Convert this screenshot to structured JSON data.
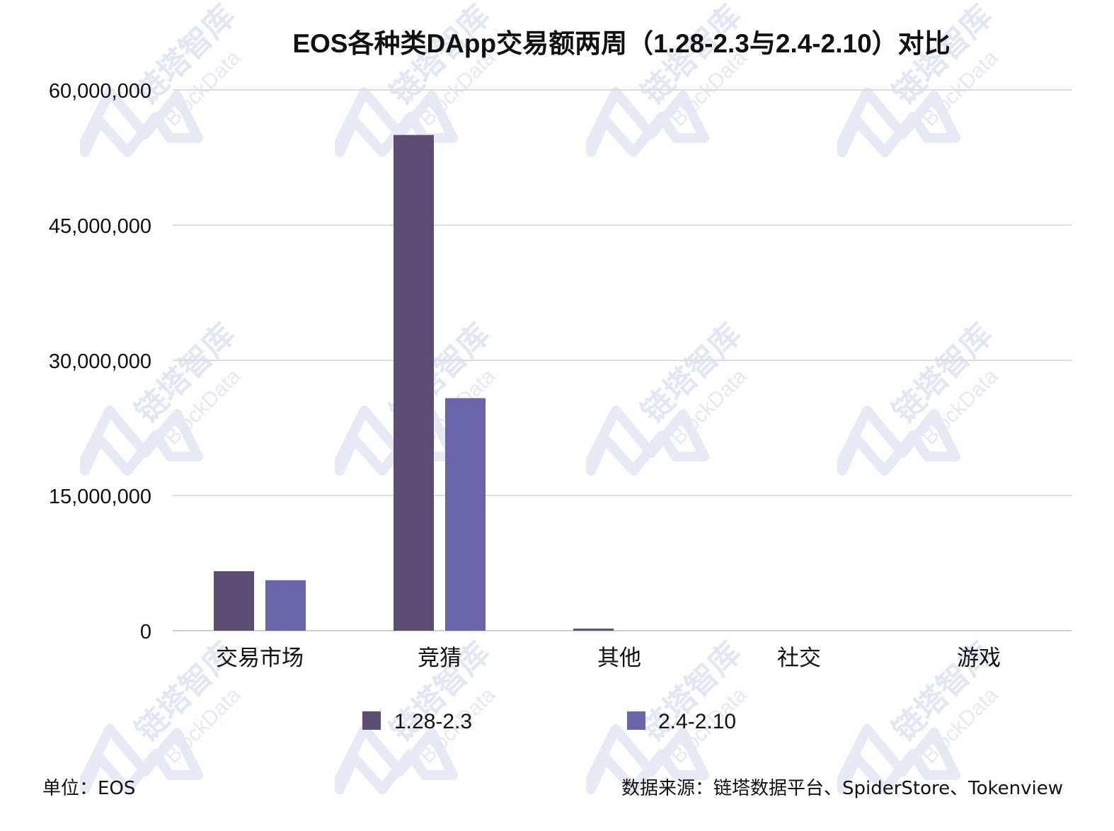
{
  "chart_data": {
    "type": "bar",
    "title": "EOS各种类DApp交易额两周（1.28-2.3与2.4-2.10）对比",
    "categories": [
      "交易市场",
      "竞猜",
      "其他",
      "社交",
      "游戏"
    ],
    "series": [
      {
        "name": "1.28-2.3",
        "values": [
          6600000,
          55000000,
          230000,
          0,
          0
        ],
        "color": "#5a4f73"
      },
      {
        "name": "2.4-2.10",
        "values": [
          5600000,
          25800000,
          0,
          0,
          0
        ],
        "color": "#6a64aa"
      }
    ],
    "yticks": [
      "0",
      "15,000,000",
      "30,000,000",
      "45,000,000",
      "60,000,000"
    ],
    "ylim": [
      0,
      60000000
    ],
    "grid": true,
    "legend_position": "bottom",
    "unit_note": "单位：EOS",
    "source_note": "数据来源：链塔数据平台、SpiderStore、Tokenview"
  },
  "watermark": {
    "text_cn": "链塔智库",
    "text_en": "BlockData",
    "color": "#e3e6f3"
  }
}
